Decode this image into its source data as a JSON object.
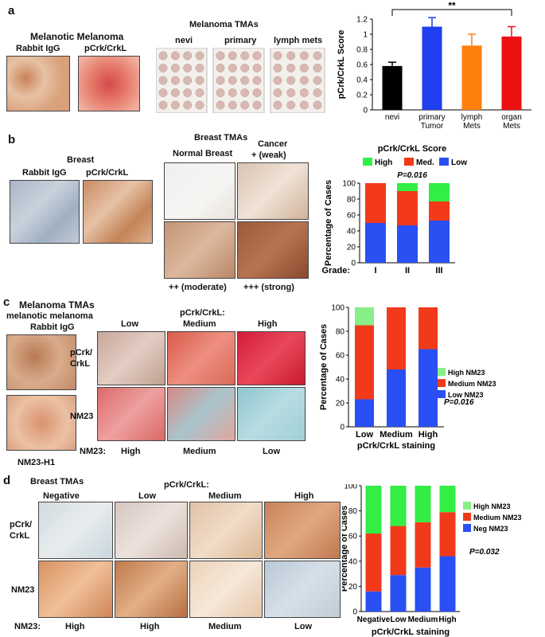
{
  "panel_a": {
    "letter": "a",
    "ihc_title": "Melanotic Melanoma",
    "ihc_labels": [
      "Rabbit IgG",
      "pCrk/CrkL"
    ],
    "tma_title": "Melanoma TMAs",
    "tma_labels": [
      "nevi",
      "primary",
      "lymph mets"
    ]
  },
  "panel_b": {
    "letter": "b",
    "ihc_title": "Breast",
    "ihc_labels": [
      "Rabbit IgG",
      "pCrk/CrkL"
    ],
    "tma_title": "Breast TMAs",
    "grid_top": [
      "Normal Breast",
      "Cancer",
      "+ (weak)"
    ],
    "grid_bottom": [
      "++ (moderate)",
      "+++ (strong)"
    ]
  },
  "panel_c": {
    "letter": "c",
    "left_title": "Melanoma TMAs",
    "left_sub1": "melanotic melanoma",
    "left_sub2": "Rabbit IgG",
    "left_bottom": "NM23-H1",
    "grid_header": "pCrk/CrkL:",
    "cols": [
      "Low",
      "Medium",
      "High"
    ],
    "rows": [
      "pCrk/",
      "CrkL",
      "NM23"
    ],
    "nm23_label": "NM23:",
    "nm23_values": [
      "High",
      "Medium",
      "Low"
    ]
  },
  "panel_d": {
    "letter": "d",
    "left_title": "Breast TMAs",
    "grid_header": "pCrk/CrkL:",
    "cols": [
      "Negative",
      "Low",
      "Medium",
      "High"
    ],
    "rows": [
      "pCrk/",
      "CrkL",
      "NM23"
    ],
    "nm23_label": "NM23:",
    "nm23_values": [
      "High",
      "High",
      "Medium",
      "Low"
    ]
  },
  "colors": {
    "black": "#000000",
    "blue": "#1f3ff0",
    "orange": "#ff7f0e",
    "red": "#ee1111",
    "green": "#33ee44",
    "lightgreen": "#88ee88",
    "stack_red": "#f23a1a",
    "stack_blue": "#2a4ff2"
  },
  "chart_data": [
    {
      "type": "bar",
      "ylabel": "pCrk/CrkL Score",
      "ylim": [
        0,
        1.2
      ],
      "yticks": [
        "0",
        "0.2",
        "0.4",
        "0.6",
        "0.8",
        "1",
        "1.2"
      ],
      "categories": [
        "nevi",
        "primary Tumor",
        "lymph Mets",
        "organ Mets"
      ],
      "category_lines": [
        [
          "nevi"
        ],
        [
          "primary",
          "Tumor"
        ],
        [
          "lymph",
          "Mets"
        ],
        [
          "organ",
          "Mets"
        ]
      ],
      "values": [
        0.58,
        1.1,
        0.85,
        0.97
      ],
      "errors": [
        0.05,
        0.12,
        0.15,
        0.13
      ],
      "bar_colors": [
        "#000000",
        "#1f3ff0",
        "#ff7f0e",
        "#ee1111"
      ],
      "annotation": "**"
    },
    {
      "type": "bar",
      "stacked": true,
      "title": "pCrk/CrkL Score",
      "subtitle": "P=0.016",
      "ylabel": "Percentage of Cases",
      "xlabel_prefix": "Grade:",
      "ylim": [
        0,
        100
      ],
      "yticks": [
        "0",
        "20",
        "40",
        "60",
        "80",
        "100"
      ],
      "categories": [
        "I",
        "II",
        "III"
      ],
      "legend": [
        "High",
        "Med.",
        "Low"
      ],
      "series": [
        {
          "name": "Low",
          "values": [
            50,
            47,
            53
          ]
        },
        {
          "name": "Med.",
          "values": [
            50,
            43,
            24
          ]
        },
        {
          "name": "High",
          "values": [
            0,
            10,
            23
          ]
        }
      ]
    },
    {
      "type": "bar",
      "stacked": true,
      "ylabel": "Percentage of Cases",
      "xlabel": "pCrk/CrkL staining",
      "ylim": [
        0,
        100
      ],
      "yticks": [
        "0",
        "20",
        "40",
        "60",
        "80",
        "100"
      ],
      "categories": [
        "Low",
        "Medium",
        "High"
      ],
      "legend": [
        "High NM23",
        "Medium NM23",
        "Low NM23"
      ],
      "annotation": "P=0.016",
      "series": [
        {
          "name": "Low NM23",
          "values": [
            23,
            48,
            65
          ]
        },
        {
          "name": "Medium NM23",
          "values": [
            62,
            52,
            35
          ]
        },
        {
          "name": "High NM23",
          "values": [
            15,
            0,
            0
          ]
        }
      ]
    },
    {
      "type": "bar",
      "stacked": true,
      "ylabel": "Percentage of Cases",
      "xlabel": "pCrk/CrkL staining",
      "ylim": [
        0,
        100
      ],
      "yticks": [
        "0",
        "20",
        "40",
        "60",
        "80",
        "100"
      ],
      "categories": [
        "Negative",
        "Low",
        "Medium",
        "High"
      ],
      "legend": [
        "High NM23",
        "Medium NM23",
        "Neg NM23"
      ],
      "annotation": "P=0.032",
      "series": [
        {
          "name": "Neg NM23",
          "values": [
            16,
            29,
            35,
            44
          ]
        },
        {
          "name": "Medium NM23",
          "values": [
            46,
            39,
            36,
            35
          ]
        },
        {
          "name": "High NM23",
          "values": [
            38,
            32,
            29,
            21
          ]
        }
      ]
    }
  ]
}
